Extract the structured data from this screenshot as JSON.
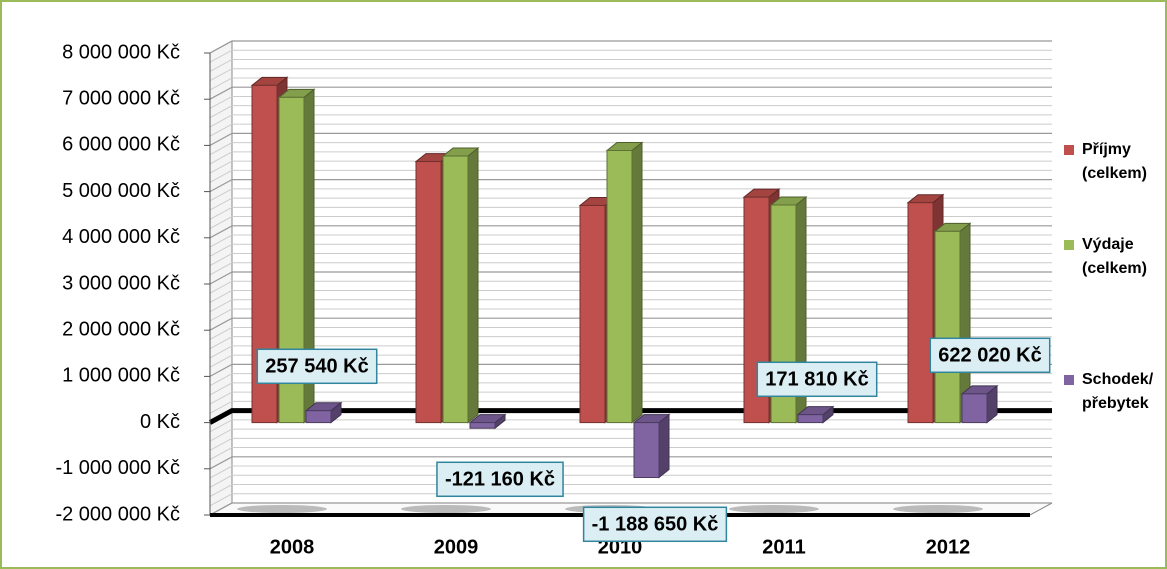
{
  "chart_data": {
    "type": "bar3d",
    "categories": [
      "2008",
      "2009",
      "2010",
      "2011",
      "2012"
    ],
    "series": [
      {
        "name": "Příjmy (celkem)",
        "color": "#c0504d",
        "values": [
          7300000,
          5650000,
          4700000,
          4880000,
          4760000
        ]
      },
      {
        "name": "Výdaje (celkem)",
        "color": "#9bbb59",
        "values": [
          7040000,
          5770000,
          5890000,
          4710000,
          4140000
        ]
      },
      {
        "name": "Schodek/ přebytek",
        "color": "#8064a2",
        "values": [
          257540,
          -121160,
          -1188650,
          171810,
          622020
        ],
        "value_labels": [
          "257 540 Kč",
          "-121 160 Kč",
          "-1 188 650 Kč",
          "171 810 Kč",
          "622 020 Kč"
        ]
      }
    ],
    "ylim": [
      -2000000,
      8000000
    ],
    "yticks": [
      {
        "value": -2000000,
        "label": "-2 000 000 Kč"
      },
      {
        "value": -1000000,
        "label": "-1 000 000 Kč"
      },
      {
        "value": 0,
        "label": "0 Kč"
      },
      {
        "value": 1000000,
        "label": "1 000 000 Kč"
      },
      {
        "value": 2000000,
        "label": "2 000 000 Kč"
      },
      {
        "value": 3000000,
        "label": "3 000 000 Kč"
      },
      {
        "value": 4000000,
        "label": "4 000 000 Kč"
      },
      {
        "value": 5000000,
        "label": "5 000 000 Kč"
      },
      {
        "value": 6000000,
        "label": "6 000 000 Kč"
      },
      {
        "value": 7000000,
        "label": "7 000 000 Kč"
      },
      {
        "value": 8000000,
        "label": "8 000 000 Kč"
      }
    ],
    "grid": true,
    "legend": "right"
  }
}
